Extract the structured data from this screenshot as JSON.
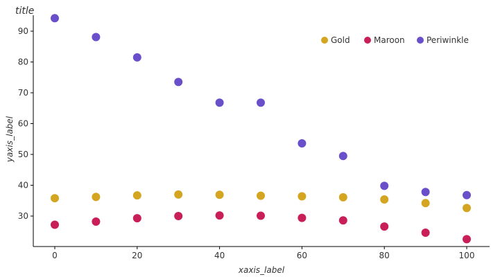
{
  "chart_data": {
    "type": "line",
    "title": "title",
    "xlabel": "xaxis_label",
    "ylabel": "yaxis_label",
    "x": [
      0,
      10,
      20,
      30,
      40,
      50,
      60,
      70,
      80,
      90,
      100
    ],
    "xlim": [
      0,
      100
    ],
    "ylim": [
      22,
      92
    ],
    "xticks": [
      0,
      20,
      40,
      60,
      80,
      100
    ],
    "yticks": [
      30,
      40,
      50,
      60,
      70,
      80,
      90
    ],
    "grid": false,
    "legend_position": "top-right",
    "series": [
      {
        "name": "Gold",
        "color": "#D4A520",
        "values": [
          35.8,
          36.2,
          36.7,
          37.0,
          36.9,
          36.6,
          36.4,
          36.1,
          35.4,
          34.2,
          32.6
        ]
      },
      {
        "name": "Maroon",
        "color": "#C91F58",
        "values": [
          27.2,
          28.2,
          29.3,
          30.0,
          30.2,
          30.1,
          29.4,
          28.6,
          26.6,
          24.6,
          22.5
        ]
      },
      {
        "name": "Periwinkle",
        "color": "#6A4FCA",
        "values": [
          94.2,
          88.1,
          81.5,
          73.5,
          66.8,
          66.8,
          53.6,
          49.5,
          39.8,
          37.8,
          36.8
        ]
      }
    ]
  }
}
